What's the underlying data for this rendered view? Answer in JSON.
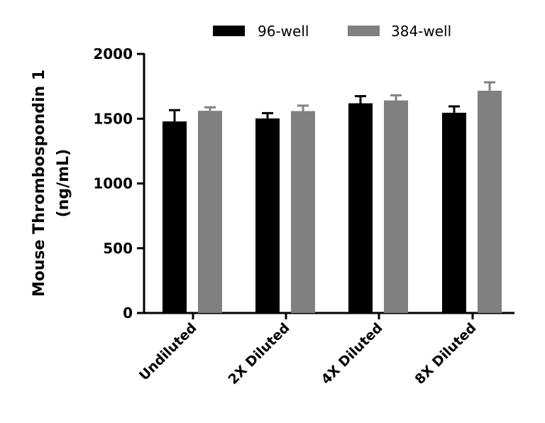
{
  "chart_data": {
    "type": "bar",
    "title": "",
    "xlabel": "",
    "ylabel": [
      "Mouse Thrombospondin 1",
      "(ng/mL)"
    ],
    "ylim": [
      0,
      2000
    ],
    "yticks": [
      "0",
      "500",
      "1000",
      "1500",
      "2000"
    ],
    "categories": [
      "Undiluted",
      "2X Diluted",
      "4X Diluted",
      "8X Diluted"
    ],
    "legend_position": "top",
    "grid": false,
    "series": [
      {
        "name": "96-well",
        "color": "#000000",
        "values": [
          1479,
          1502,
          1619,
          1546
        ],
        "error": [
          87,
          41,
          55,
          49
        ]
      },
      {
        "name": "384-well",
        "color": "#808080",
        "values": [
          1561,
          1559,
          1641,
          1716
        ],
        "error": [
          27,
          42,
          40,
          65
        ]
      }
    ]
  }
}
